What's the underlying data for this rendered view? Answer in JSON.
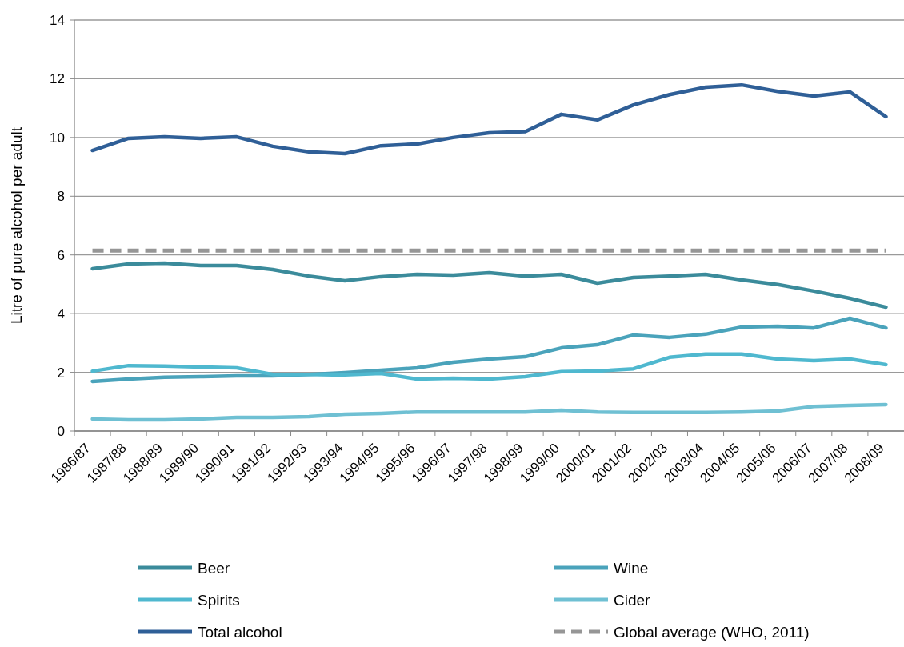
{
  "chart_data": {
    "type": "line",
    "ylabel": "Litre of pure alcohol per adult",
    "categories": [
      "1986/87",
      "1987/88",
      "1988/89",
      "1989/90",
      "1990/91",
      "1991/92",
      "1992/93",
      "1993/94",
      "1994/95",
      "1995/96",
      "1996/97",
      "1997/98",
      "1998/99",
      "1999/00",
      "2000/01",
      "2001/02",
      "2002/03",
      "2003/04",
      "2004/05",
      "2005/06",
      "2006/07",
      "2007/08",
      "2008/09"
    ],
    "series": [
      {
        "name": "Beer",
        "color": "#3b8b9b",
        "values": [
          5.53,
          5.69,
          5.72,
          5.64,
          5.64,
          5.5,
          5.28,
          5.12,
          5.26,
          5.34,
          5.31,
          5.39,
          5.28,
          5.34,
          5.04,
          5.23,
          5.28,
          5.34,
          5.15,
          4.99,
          4.77,
          4.52,
          4.22
        ]
      },
      {
        "name": "Wine",
        "color": "#4aa3bb",
        "values": [
          1.69,
          1.77,
          1.83,
          1.85,
          1.88,
          1.88,
          1.93,
          1.99,
          2.07,
          2.15,
          2.34,
          2.45,
          2.53,
          2.83,
          2.94,
          3.27,
          3.19,
          3.3,
          3.54,
          3.57,
          3.51,
          3.84,
          3.51
        ]
      },
      {
        "name": "Spirits",
        "color": "#4fb8cf",
        "values": [
          2.04,
          2.23,
          2.21,
          2.18,
          2.15,
          1.93,
          1.93,
          1.91,
          1.96,
          1.77,
          1.8,
          1.77,
          1.85,
          2.02,
          2.04,
          2.12,
          2.51,
          2.62,
          2.62,
          2.45,
          2.4,
          2.45,
          2.26
        ]
      },
      {
        "name": "Cider",
        "color": "#6fc0d3",
        "values": [
          0.41,
          0.38,
          0.38,
          0.41,
          0.46,
          0.46,
          0.49,
          0.57,
          0.6,
          0.65,
          0.65,
          0.65,
          0.65,
          0.71,
          0.65,
          0.63,
          0.63,
          0.63,
          0.65,
          0.68,
          0.84,
          0.87,
          0.9
        ]
      },
      {
        "name": "Total alcohol",
        "color": "#2f5f97",
        "values": [
          9.56,
          9.97,
          10.02,
          9.97,
          10.02,
          9.7,
          9.51,
          9.45,
          9.72,
          9.78,
          10.0,
          10.16,
          10.2,
          10.79,
          10.6,
          11.11,
          11.46,
          11.71,
          11.79,
          11.57,
          11.41,
          11.55,
          10.71
        ]
      }
    ],
    "ref_lines": [
      {
        "axis": "y",
        "value": 6.15,
        "label": "Global average (WHO, 2011)",
        "color": "#969696",
        "line_style": "dashed"
      }
    ],
    "ylim": [
      0,
      14
    ],
    "yticks": [
      0,
      2,
      4,
      6,
      8,
      10,
      12,
      14
    ],
    "grid": "y",
    "legend": "bottom",
    "marker": "none",
    "line_style": "solid"
  }
}
